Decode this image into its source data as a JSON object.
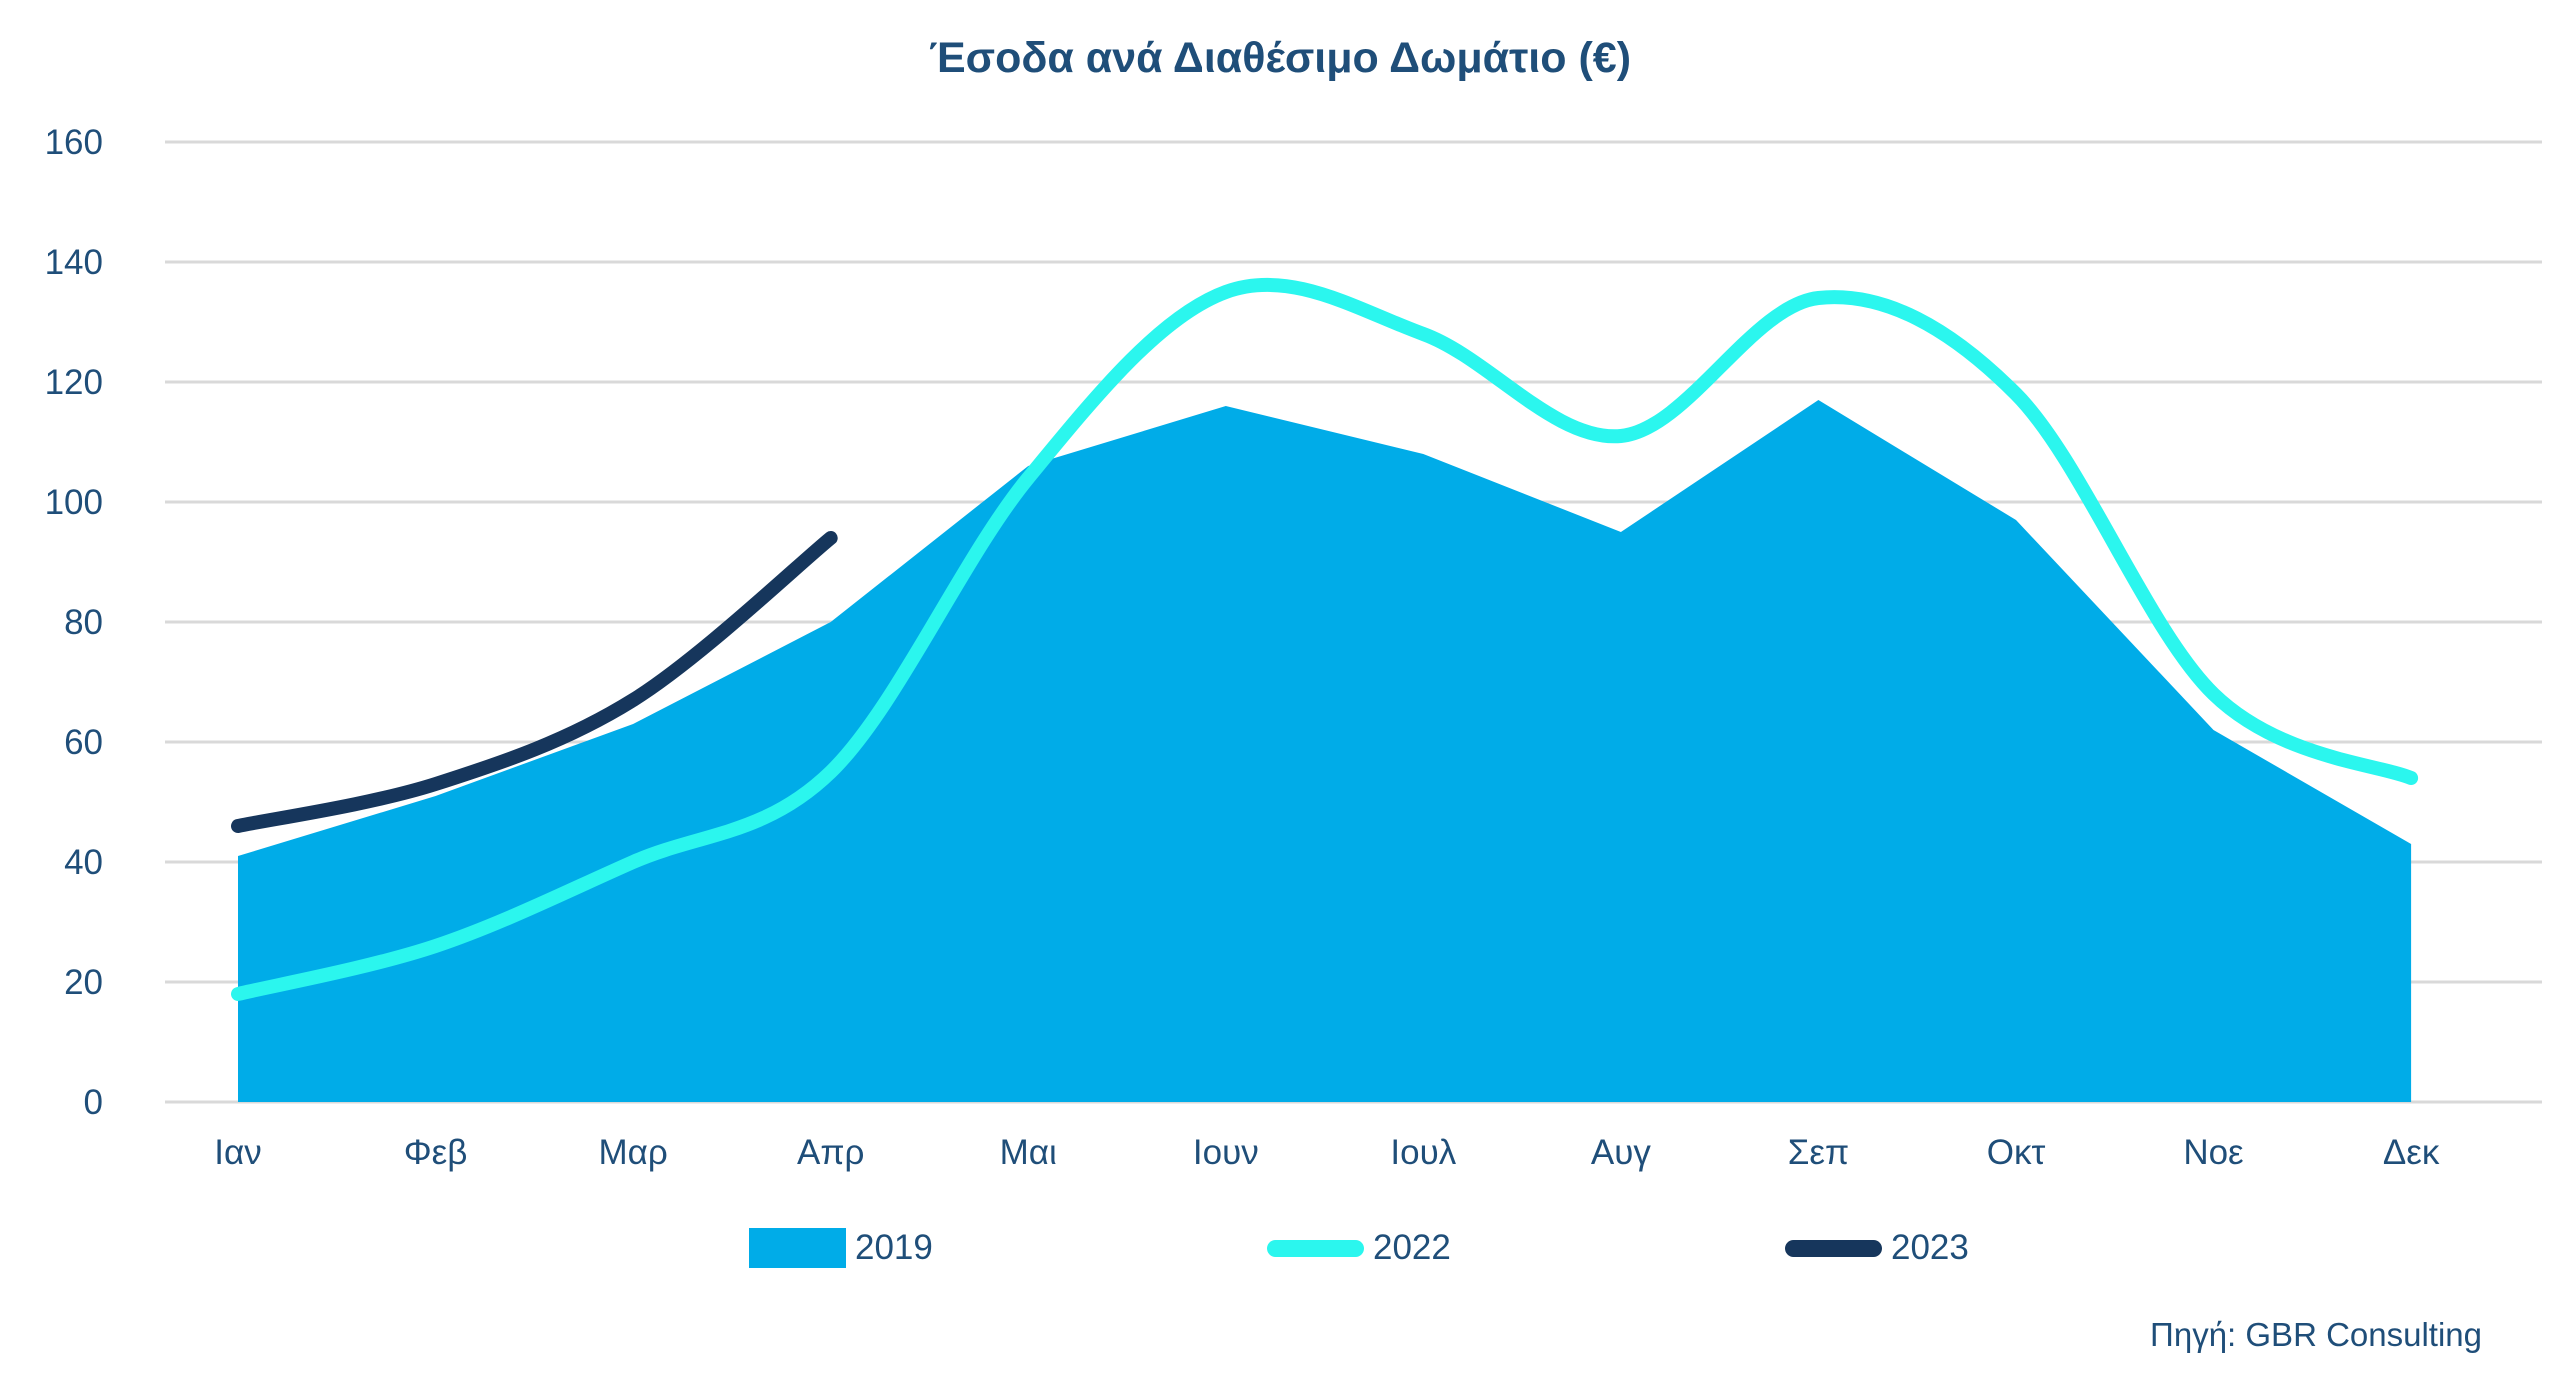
{
  "page": {
    "background": "#FFFFFF"
  },
  "chart_data": {
    "type": "area",
    "title": "Έσοδα ανά Διαθέσιμο Δωμάτιο (€)",
    "categories": [
      "Ιαν",
      "Φεβ",
      "Μαρ",
      "Απρ",
      "Μαι",
      "Ιουν",
      "Ιουλ",
      "Αυγ",
      "Σεπ",
      "Οκτ",
      "Νοε",
      "Δεκ"
    ],
    "series": [
      {
        "name": "2019",
        "type": "area",
        "smooth": false,
        "color": "#00ACE8",
        "values": [
          41,
          51,
          63,
          80,
          106,
          116,
          108,
          95,
          117,
          97,
          62,
          43
        ]
      },
      {
        "name": "2022",
        "type": "line",
        "smooth": true,
        "color": "#2BF6EE",
        "values": [
          18,
          26,
          40,
          55,
          104,
          135,
          128,
          111,
          134,
          118,
          68,
          54
        ]
      },
      {
        "name": "2023",
        "type": "line",
        "smooth": true,
        "color": "#16365C",
        "values": [
          46,
          53,
          67,
          94
        ]
      }
    ],
    "ylim": [
      0,
      160
    ],
    "y_step": 20,
    "grid": "horizontal",
    "gridline_color": "#D9D9D9",
    "axis_text_color": "#1F4E79",
    "legend_position": "bottom",
    "legend_labels": [
      "2019",
      "2022",
      "2023"
    ]
  },
  "source_note": "Πηγή: GBR Consulting"
}
